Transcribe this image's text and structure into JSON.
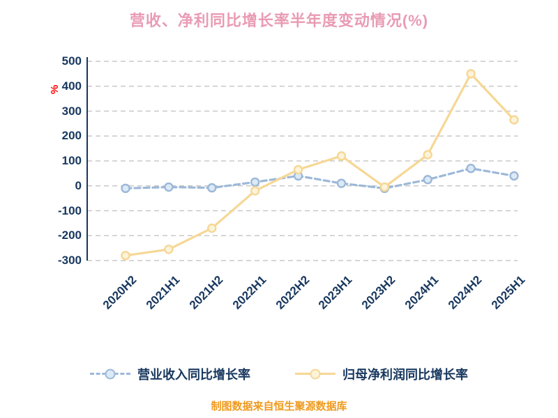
{
  "title": "营收、净利同比增长率半年度变动情况(%)",
  "y_axis": {
    "unit": "%",
    "ticks": [
      500,
      400,
      300,
      200,
      100,
      0,
      -100,
      -200,
      -300
    ]
  },
  "footer": "制图数据来自恒生聚源数据库",
  "chart_data": {
    "type": "line",
    "title": "营收、净利同比增长率半年度变动情况(%)",
    "categories": [
      "2020H2",
      "2021H1",
      "2021H2",
      "2022H1",
      "2022H2",
      "2023H1",
      "2023H2",
      "2024H1",
      "2024H2",
      "2025H1"
    ],
    "series": [
      {
        "name": "营业收入同比增长率",
        "values": [
          -10,
          -5,
          -8,
          15,
          40,
          10,
          -10,
          25,
          70,
          40
        ],
        "color": "#9cb8d8",
        "marker_fill": "#dce9f6",
        "style": "dashed"
      },
      {
        "name": "归母净利润同比增长率",
        "values": [
          -280,
          -255,
          -170,
          -20,
          65,
          120,
          -5,
          125,
          450,
          265
        ],
        "color": "#f6d795",
        "marker_fill": "#fdf3da",
        "style": "solid"
      }
    ],
    "ylim": [
      -300,
      500
    ],
    "ylabel": "%",
    "grid": "horizontal-dashed",
    "legend_position": "bottom"
  },
  "colors": {
    "axis_text": "#17375e",
    "grid": "#c8c8c8",
    "axis_line": "#17375e",
    "title": "#e99bb4",
    "footer": "#ef9a1e",
    "y_unit": "#ff0000"
  }
}
